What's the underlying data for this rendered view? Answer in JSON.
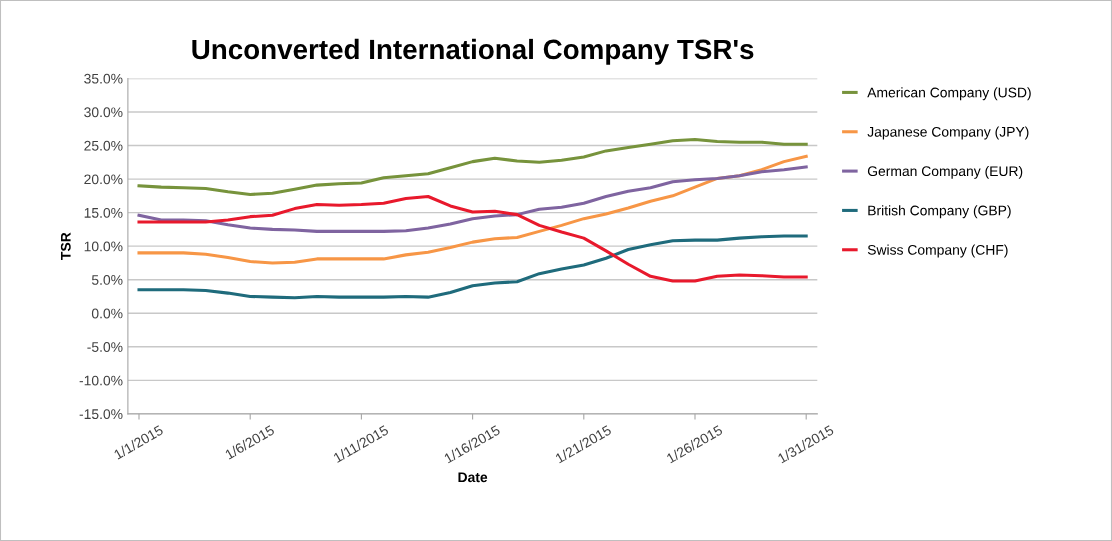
{
  "chart_data": {
    "type": "line",
    "title": "Unconverted International Company TSR's",
    "xlabel": "Date",
    "ylabel": "TSR",
    "x": [
      "2015-01-01",
      "2015-01-02",
      "2015-01-03",
      "2015-01-04",
      "2015-01-05",
      "2015-01-06",
      "2015-01-07",
      "2015-01-08",
      "2015-01-09",
      "2015-01-10",
      "2015-01-11",
      "2015-01-12",
      "2015-01-13",
      "2015-01-14",
      "2015-01-15",
      "2015-01-16",
      "2015-01-17",
      "2015-01-18",
      "2015-01-19",
      "2015-01-20",
      "2015-01-21",
      "2015-01-22",
      "2015-01-23",
      "2015-01-24",
      "2015-01-25",
      "2015-01-26",
      "2015-01-27",
      "2015-01-28",
      "2015-01-29",
      "2015-01-30",
      "2015-01-31"
    ],
    "series": [
      {
        "name": "American Company (USD)",
        "color": "#77933c",
        "values": [
          19.0,
          18.8,
          18.7,
          18.6,
          18.1,
          17.7,
          17.9,
          18.5,
          19.1,
          19.3,
          19.4,
          20.2,
          20.5,
          20.8,
          21.7,
          22.6,
          23.1,
          22.7,
          22.5,
          22.8,
          23.3,
          24.2,
          24.7,
          25.2,
          25.7,
          25.9,
          25.6,
          25.5,
          25.5,
          25.2,
          25.2
        ]
      },
      {
        "name": "Japanese Company (JPY)",
        "color": "#f79646",
        "values": [
          9.0,
          9.0,
          9.0,
          8.8,
          8.3,
          7.7,
          7.5,
          7.6,
          8.1,
          8.1,
          8.1,
          8.1,
          8.7,
          9.1,
          9.8,
          10.6,
          11.1,
          11.3,
          12.2,
          13.1,
          14.1,
          14.8,
          15.7,
          16.7,
          17.5,
          18.8,
          20.1,
          20.5,
          21.4,
          22.6,
          23.4
        ]
      },
      {
        "name": "German Company (EUR)",
        "color": "#7f64a0",
        "values": [
          14.6,
          13.9,
          13.9,
          13.8,
          13.2,
          12.7,
          12.5,
          12.4,
          12.2,
          12.2,
          12.2,
          12.2,
          12.3,
          12.7,
          13.3,
          14.1,
          14.5,
          14.7,
          15.5,
          15.8,
          16.4,
          17.4,
          18.2,
          18.7,
          19.6,
          19.9,
          20.1,
          20.5,
          21.1,
          21.4,
          21.8
        ]
      },
      {
        "name": "British Company (GBP)",
        "color": "#1f6b7c",
        "values": [
          3.5,
          3.5,
          3.5,
          3.4,
          3.0,
          2.5,
          2.4,
          2.3,
          2.5,
          2.4,
          2.4,
          2.4,
          2.5,
          2.4,
          3.1,
          4.1,
          4.5,
          4.7,
          5.9,
          6.6,
          7.2,
          8.2,
          9.5,
          10.2,
          10.8,
          10.9,
          10.9,
          11.2,
          11.4,
          11.5,
          11.5
        ]
      },
      {
        "name": "Swiss Company (CHF)",
        "color": "#e8192c",
        "values": [
          13.6,
          13.6,
          13.6,
          13.6,
          13.9,
          14.4,
          14.6,
          15.6,
          16.2,
          16.1,
          16.2,
          16.4,
          17.1,
          17.4,
          16.0,
          15.1,
          15.2,
          14.7,
          13.1,
          12.1,
          11.2,
          9.3,
          7.3,
          5.5,
          4.8,
          4.8,
          5.5,
          5.7,
          5.6,
          5.4,
          5.4
        ]
      }
    ],
    "xlim": [
      "2014-12-31T12:00",
      "2015-01-31T12:00"
    ],
    "xticks": [
      {
        "value": "2015-01-01",
        "label": "1/1/2015"
      },
      {
        "value": "2015-01-06",
        "label": "1/6/2015"
      },
      {
        "value": "2015-01-11",
        "label": "1/11/2015"
      },
      {
        "value": "2015-01-16",
        "label": "1/16/2015"
      },
      {
        "value": "2015-01-21",
        "label": "1/21/2015"
      },
      {
        "value": "2015-01-26",
        "label": "1/26/2015"
      },
      {
        "value": "2015-01-31",
        "label": "1/31/2015"
      }
    ],
    "ylim": [
      -15,
      35
    ],
    "yticks": [
      {
        "value": -15,
        "label": "-15.0%"
      },
      {
        "value": -10,
        "label": "-10.0%"
      },
      {
        "value": -5,
        "label": "-5.0%"
      },
      {
        "value": 0,
        "label": "0.0%"
      },
      {
        "value": 5,
        "label": "5.0%"
      },
      {
        "value": 10,
        "label": "10.0%"
      },
      {
        "value": 15,
        "label": "15.0%"
      },
      {
        "value": 20,
        "label": "20.0%"
      },
      {
        "value": 25,
        "label": "25.0%"
      },
      {
        "value": 30,
        "label": "30.0%"
      },
      {
        "value": 35,
        "label": "35.0%"
      }
    ],
    "grid": "y",
    "legend": "right",
    "line_style": "solid",
    "marker": "none"
  }
}
